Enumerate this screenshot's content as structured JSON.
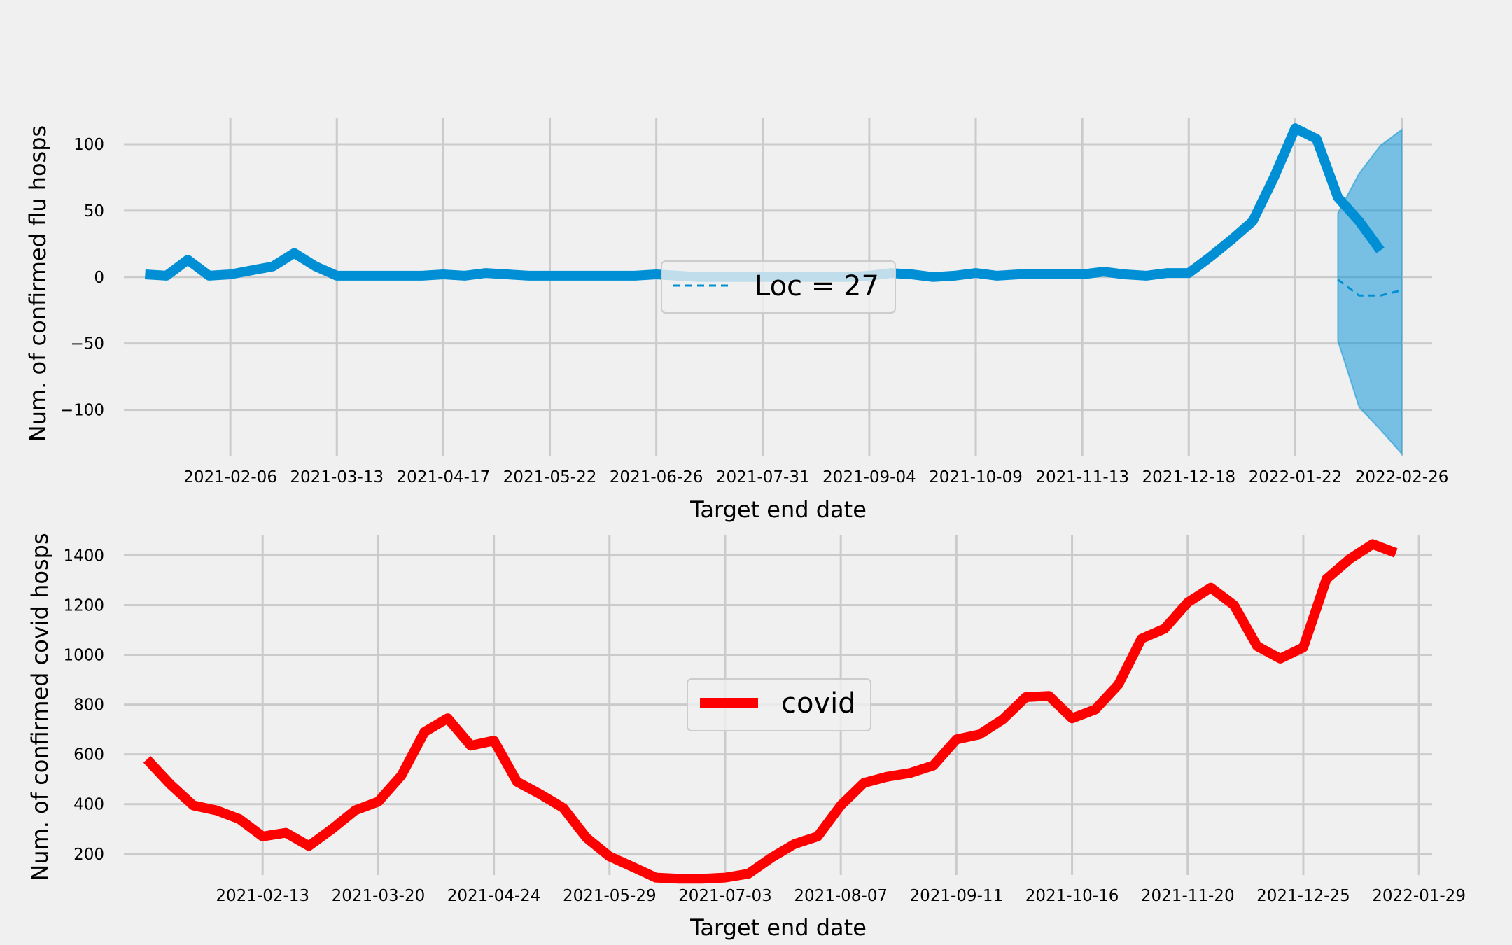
{
  "chart_data": [
    {
      "type": "line",
      "title": "",
      "xlabel": "Target end date",
      "ylabel": "Num. of confirmed flu hosps",
      "grid": true,
      "legend_position": "center",
      "x_start": "2021-01-09",
      "x_step_days": 7,
      "xlim": [
        "2021-01-02",
        "2022-03-08"
      ],
      "ylim": [
        -135,
        120
      ],
      "xticks": [
        "2021-02-06",
        "2021-03-13",
        "2021-04-17",
        "2021-05-22",
        "2021-06-26",
        "2021-07-31",
        "2021-09-04",
        "2021-10-09",
        "2021-11-13",
        "2021-12-18",
        "2022-01-22",
        "2022-02-26"
      ],
      "yticks": [
        {
          "value": 100,
          "label": "100"
        },
        {
          "value": 50,
          "label": "50"
        },
        {
          "value": 0,
          "label": "0"
        },
        {
          "value": -50,
          "label": "−50"
        },
        {
          "value": -100,
          "label": "−100"
        }
      ],
      "series": [
        {
          "name": "",
          "color": "#008fd5",
          "values": [
            2,
            1,
            13,
            1,
            2,
            5,
            8,
            18,
            8,
            1,
            1,
            1,
            1,
            1,
            2,
            1,
            3,
            2,
            1,
            1,
            1,
            1,
            1,
            1,
            2,
            1,
            0,
            0,
            0,
            0,
            0,
            0,
            0,
            0,
            1,
            3,
            2,
            0,
            1,
            3,
            1,
            2,
            2,
            2,
            2,
            4,
            2,
            1,
            3,
            3,
            15,
            28,
            42,
            75,
            112,
            104,
            60,
            42,
            20
          ]
        }
      ],
      "forecast": {
        "name": "Loc = 27",
        "color": "#008fd5",
        "dates": [
          "2022-02-05",
          "2022-02-12",
          "2022-02-19",
          "2022-02-26"
        ],
        "median": [
          -2,
          -14,
          -14,
          -10
        ],
        "lower": [
          -48,
          -98,
          -115,
          -133
        ],
        "upper": [
          48,
          78,
          99,
          111
        ]
      }
    },
    {
      "type": "line",
      "title": "",
      "xlabel": "Target end date",
      "ylabel": "Num. of confirmed covid hosps",
      "grid": true,
      "legend_position": "center",
      "x_start": "2021-01-09",
      "x_step_days": 7,
      "xlim": [
        "2021-01-02",
        "2022-02-02"
      ],
      "ylim": [
        115,
        1480
      ],
      "xticks": [
        "2021-02-13",
        "2021-03-20",
        "2021-04-24",
        "2021-05-29",
        "2021-07-03",
        "2021-08-07",
        "2021-09-11",
        "2021-10-16",
        "2021-11-20",
        "2021-12-25",
        "2022-01-29"
      ],
      "yticks": [
        {
          "value": 1400,
          "label": "1400"
        },
        {
          "value": 1200,
          "label": "1200"
        },
        {
          "value": 1000,
          "label": "1000"
        },
        {
          "value": 800,
          "label": "800"
        },
        {
          "value": 600,
          "label": "600"
        },
        {
          "value": 400,
          "label": "400"
        },
        {
          "value": 200,
          "label": "200"
        }
      ],
      "series": [
        {
          "name": "covid",
          "color": "#ff0000",
          "values": [
            580,
            480,
            395,
            375,
            340,
            270,
            285,
            232,
            300,
            375,
            410,
            515,
            690,
            745,
            635,
            655,
            490,
            440,
            385,
            265,
            190,
            148,
            105,
            100,
            100,
            105,
            120,
            185,
            240,
            270,
            395,
            485,
            510,
            525,
            555,
            660,
            680,
            740,
            830,
            835,
            745,
            780,
            880,
            1065,
            1105,
            1210,
            1270,
            1200,
            1035,
            985,
            1030,
            1305,
            1385,
            1445,
            1410
          ]
        }
      ]
    }
  ]
}
